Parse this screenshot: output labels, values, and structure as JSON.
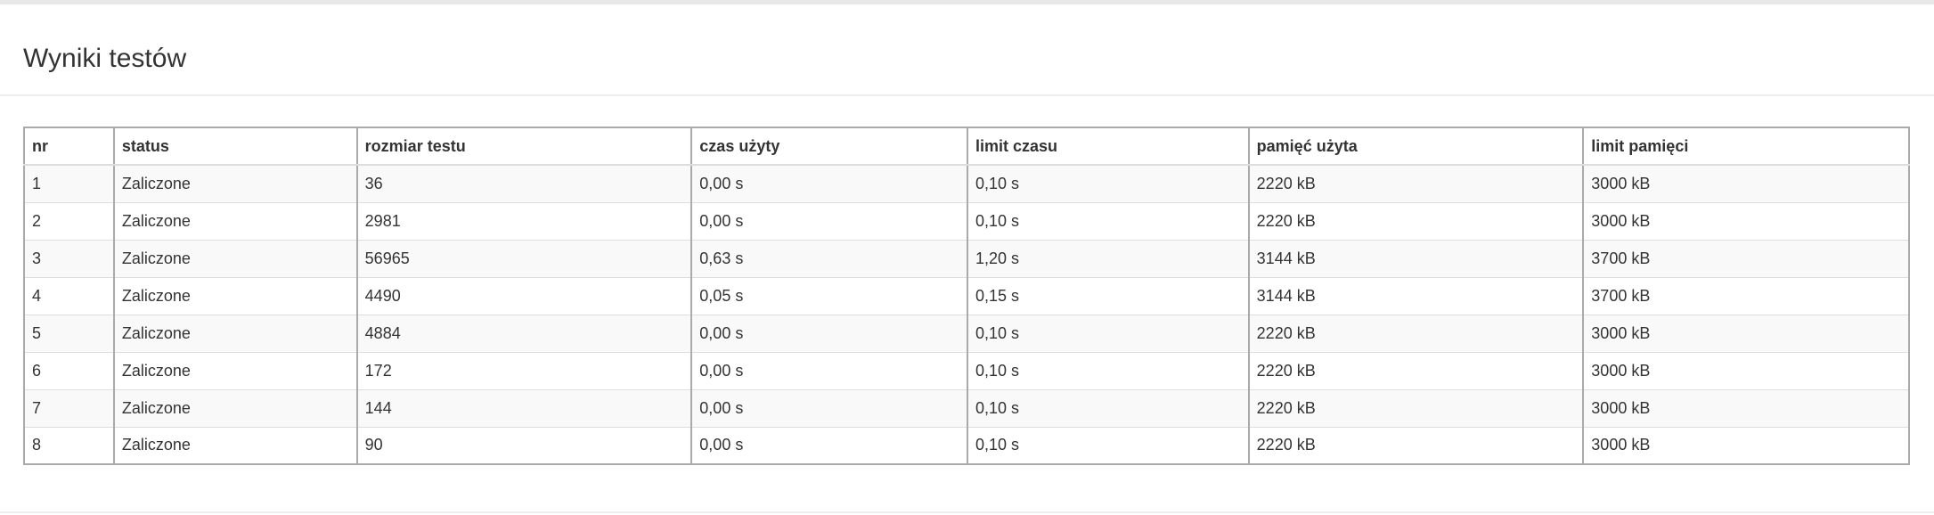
{
  "page": {
    "title": "Wyniki testów"
  },
  "table": {
    "columns": [
      "nr",
      "status",
      "rozmiar testu",
      "czas użyty",
      "limit czasu",
      "pamięć użyta",
      "limit pamięci"
    ],
    "rows": [
      [
        "1",
        "Zaliczone",
        "36",
        "0,00 s",
        "0,10 s",
        "2220 kB",
        "3000 kB"
      ],
      [
        "2",
        "Zaliczone",
        "2981",
        "0,00 s",
        "0,10 s",
        "2220 kB",
        "3000 kB"
      ],
      [
        "3",
        "Zaliczone",
        "56965",
        "0,63 s",
        "1,20 s",
        "3144 kB",
        "3700 kB"
      ],
      [
        "4",
        "Zaliczone",
        "4490",
        "0,05 s",
        "0,15 s",
        "3144 kB",
        "3700 kB"
      ],
      [
        "5",
        "Zaliczone",
        "4884",
        "0,00 s",
        "0,10 s",
        "2220 kB",
        "3000 kB"
      ],
      [
        "6",
        "Zaliczone",
        "172",
        "0,00 s",
        "0,10 s",
        "2220 kB",
        "3000 kB"
      ],
      [
        "7",
        "Zaliczone",
        "144",
        "0,00 s",
        "0,10 s",
        "2220 kB",
        "3000 kB"
      ],
      [
        "8",
        "Zaliczone",
        "90",
        "0,00 s",
        "0,10 s",
        "2220 kB",
        "3000 kB"
      ]
    ]
  },
  "colors": {
    "status_ok": "#2e8b22",
    "text": "#333333",
    "row_stripe": "#f9f9f9"
  }
}
